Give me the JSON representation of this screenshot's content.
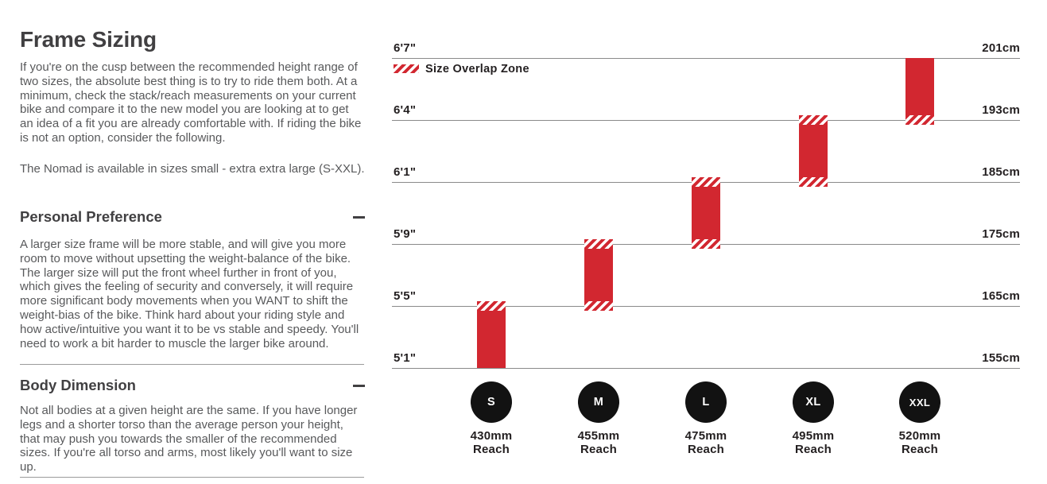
{
  "page": {
    "title": "Frame Sizing",
    "intro": "If you're on the cusp between the recommended height range of two sizes, the absolute best thing is to try to ride them both. At a minimum, check the stack/reach measurements on your current bike and compare it to the new model you are looking at to get an idea of a fit you are already comfortable with. If riding the bike is not an option, consider the following.",
    "availability": "The Nomad is available in sizes small - extra extra large (S-XXL)."
  },
  "accordion": [
    {
      "title": "Personal Preference",
      "state": "expanded",
      "body": "A larger size frame will be more stable, and will give you more room to move without upsetting the weight-balance of the bike. The larger size will put the front wheel further in front of you, which gives the feeling of security and conversely, it will require more significant body movements when you WANT to shift the weight-bias of the bike. Think hard about your riding style and how active/intuitive you want it to be vs stable and speedy. You'll need to work a bit harder to muscle the larger bike around."
    },
    {
      "title": "Body Dimension",
      "state": "expanded",
      "body": "Not all bodies at a given height are the same. If you have longer legs and a shorter torso than the average person your height, that may push you towards the smaller of the recommended sizes. If you're all torso and arms, most likely you'll want to size up."
    }
  ],
  "chart_data": {
    "type": "bar",
    "subtype": "vertical-range-size-chart",
    "legend": "Size Overlap Zone",
    "gridlines": [
      {
        "imperial": "6'7\"",
        "metric": "201cm",
        "cm": 201
      },
      {
        "imperial": "6'4\"",
        "metric": "193cm",
        "cm": 193
      },
      {
        "imperial": "6'1\"",
        "metric": "185cm",
        "cm": 185
      },
      {
        "imperial": "5'9\"",
        "metric": "175cm",
        "cm": 175
      },
      {
        "imperial": "5'5\"",
        "metric": "165cm",
        "cm": 165
      },
      {
        "imperial": "5'1\"",
        "metric": "155cm",
        "cm": 155
      }
    ],
    "series": [
      {
        "size": "S",
        "min_cm": 155,
        "max_cm": 165,
        "min_imperial": "5'1\"",
        "max_imperial": "5'5\"",
        "overlap_top": true,
        "overlap_bottom": false,
        "reach_mm": "430mm",
        "reach_caption": "Reach"
      },
      {
        "size": "M",
        "min_cm": 165,
        "max_cm": 175,
        "min_imperial": "5'5\"",
        "max_imperial": "5'9\"",
        "overlap_top": true,
        "overlap_bottom": true,
        "reach_mm": "455mm",
        "reach_caption": "Reach"
      },
      {
        "size": "L",
        "min_cm": 175,
        "max_cm": 185,
        "min_imperial": "5'9\"",
        "max_imperial": "6'1\"",
        "overlap_top": true,
        "overlap_bottom": true,
        "reach_mm": "475mm",
        "reach_caption": "Reach"
      },
      {
        "size": "XL",
        "min_cm": 185,
        "max_cm": 193,
        "min_imperial": "6'1\"",
        "max_imperial": "6'4\"",
        "overlap_top": true,
        "overlap_bottom": true,
        "reach_mm": "495mm",
        "reach_caption": "Reach"
      },
      {
        "size": "XXL",
        "min_cm": 193,
        "max_cm": 201,
        "min_imperial": "6'4\"",
        "max_imperial": "6'7\"",
        "overlap_top": false,
        "overlap_bottom": true,
        "reach_mm": "520mm",
        "reach_caption": "Reach"
      }
    ],
    "ylim_cm": [
      155,
      201
    ],
    "legend_position": "top-left",
    "grid": true
  },
  "colors": {
    "accent_red": "#d22730",
    "circle_black": "#121212",
    "heading_text": "#414042",
    "body_text": "#58595b",
    "label_text": "#231f20",
    "gridline": "#8a8a8a",
    "divider": "#9b9b9b"
  }
}
